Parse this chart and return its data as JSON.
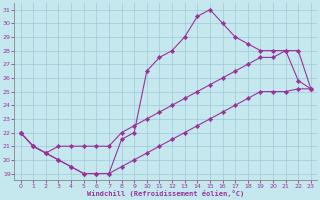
{
  "bg_color": "#c5e8ee",
  "grid_color": "#a0c8d8",
  "line_color": "#993399",
  "xlabel": "Windchill (Refroidissement éolien,°C)",
  "xlim": [
    -0.5,
    23.5
  ],
  "ylim": [
    18.5,
    31.5
  ],
  "xticks": [
    0,
    1,
    2,
    3,
    4,
    5,
    6,
    7,
    8,
    9,
    10,
    11,
    12,
    13,
    14,
    15,
    16,
    17,
    18,
    19,
    20,
    21,
    22,
    23
  ],
  "yticks": [
    19,
    20,
    21,
    22,
    23,
    24,
    25,
    26,
    27,
    28,
    29,
    30,
    31
  ],
  "line1_x": [
    0,
    1,
    2,
    3,
    4,
    5,
    6,
    7,
    8,
    9,
    10,
    11,
    12,
    13,
    14,
    15,
    16,
    17,
    18,
    19,
    20,
    21,
    22,
    23
  ],
  "line1_y": [
    22,
    21,
    20.5,
    20,
    19.5,
    19,
    19,
    19,
    19.5,
    20,
    20.5,
    21,
    21.5,
    22,
    22.5,
    23,
    23.5,
    24,
    24.5,
    25,
    25,
    25,
    25.2,
    25.2
  ],
  "line2_x": [
    0,
    1,
    2,
    3,
    4,
    5,
    6,
    7,
    8,
    9,
    10,
    11,
    12,
    13,
    14,
    15,
    16,
    17,
    18,
    19,
    20,
    21,
    22,
    23
  ],
  "line2_y": [
    22,
    21,
    20.5,
    20,
    19.5,
    19,
    19,
    19,
    21.5,
    22,
    26.5,
    27.5,
    28,
    29,
    30.5,
    31,
    30,
    29,
    28.5,
    28,
    28,
    28,
    25.8,
    25.2
  ],
  "line3_x": [
    0,
    1,
    2,
    3,
    4,
    5,
    6,
    7,
    8,
    9,
    10,
    11,
    12,
    13,
    14,
    15,
    16,
    17,
    18,
    19,
    20,
    21,
    22,
    23
  ],
  "line3_y": [
    22,
    21,
    20.5,
    21,
    21,
    21,
    21,
    21,
    22,
    22.5,
    23,
    23.5,
    24,
    24.5,
    25,
    25.5,
    26,
    26.5,
    27,
    27.5,
    27.5,
    28,
    28,
    25.2
  ]
}
